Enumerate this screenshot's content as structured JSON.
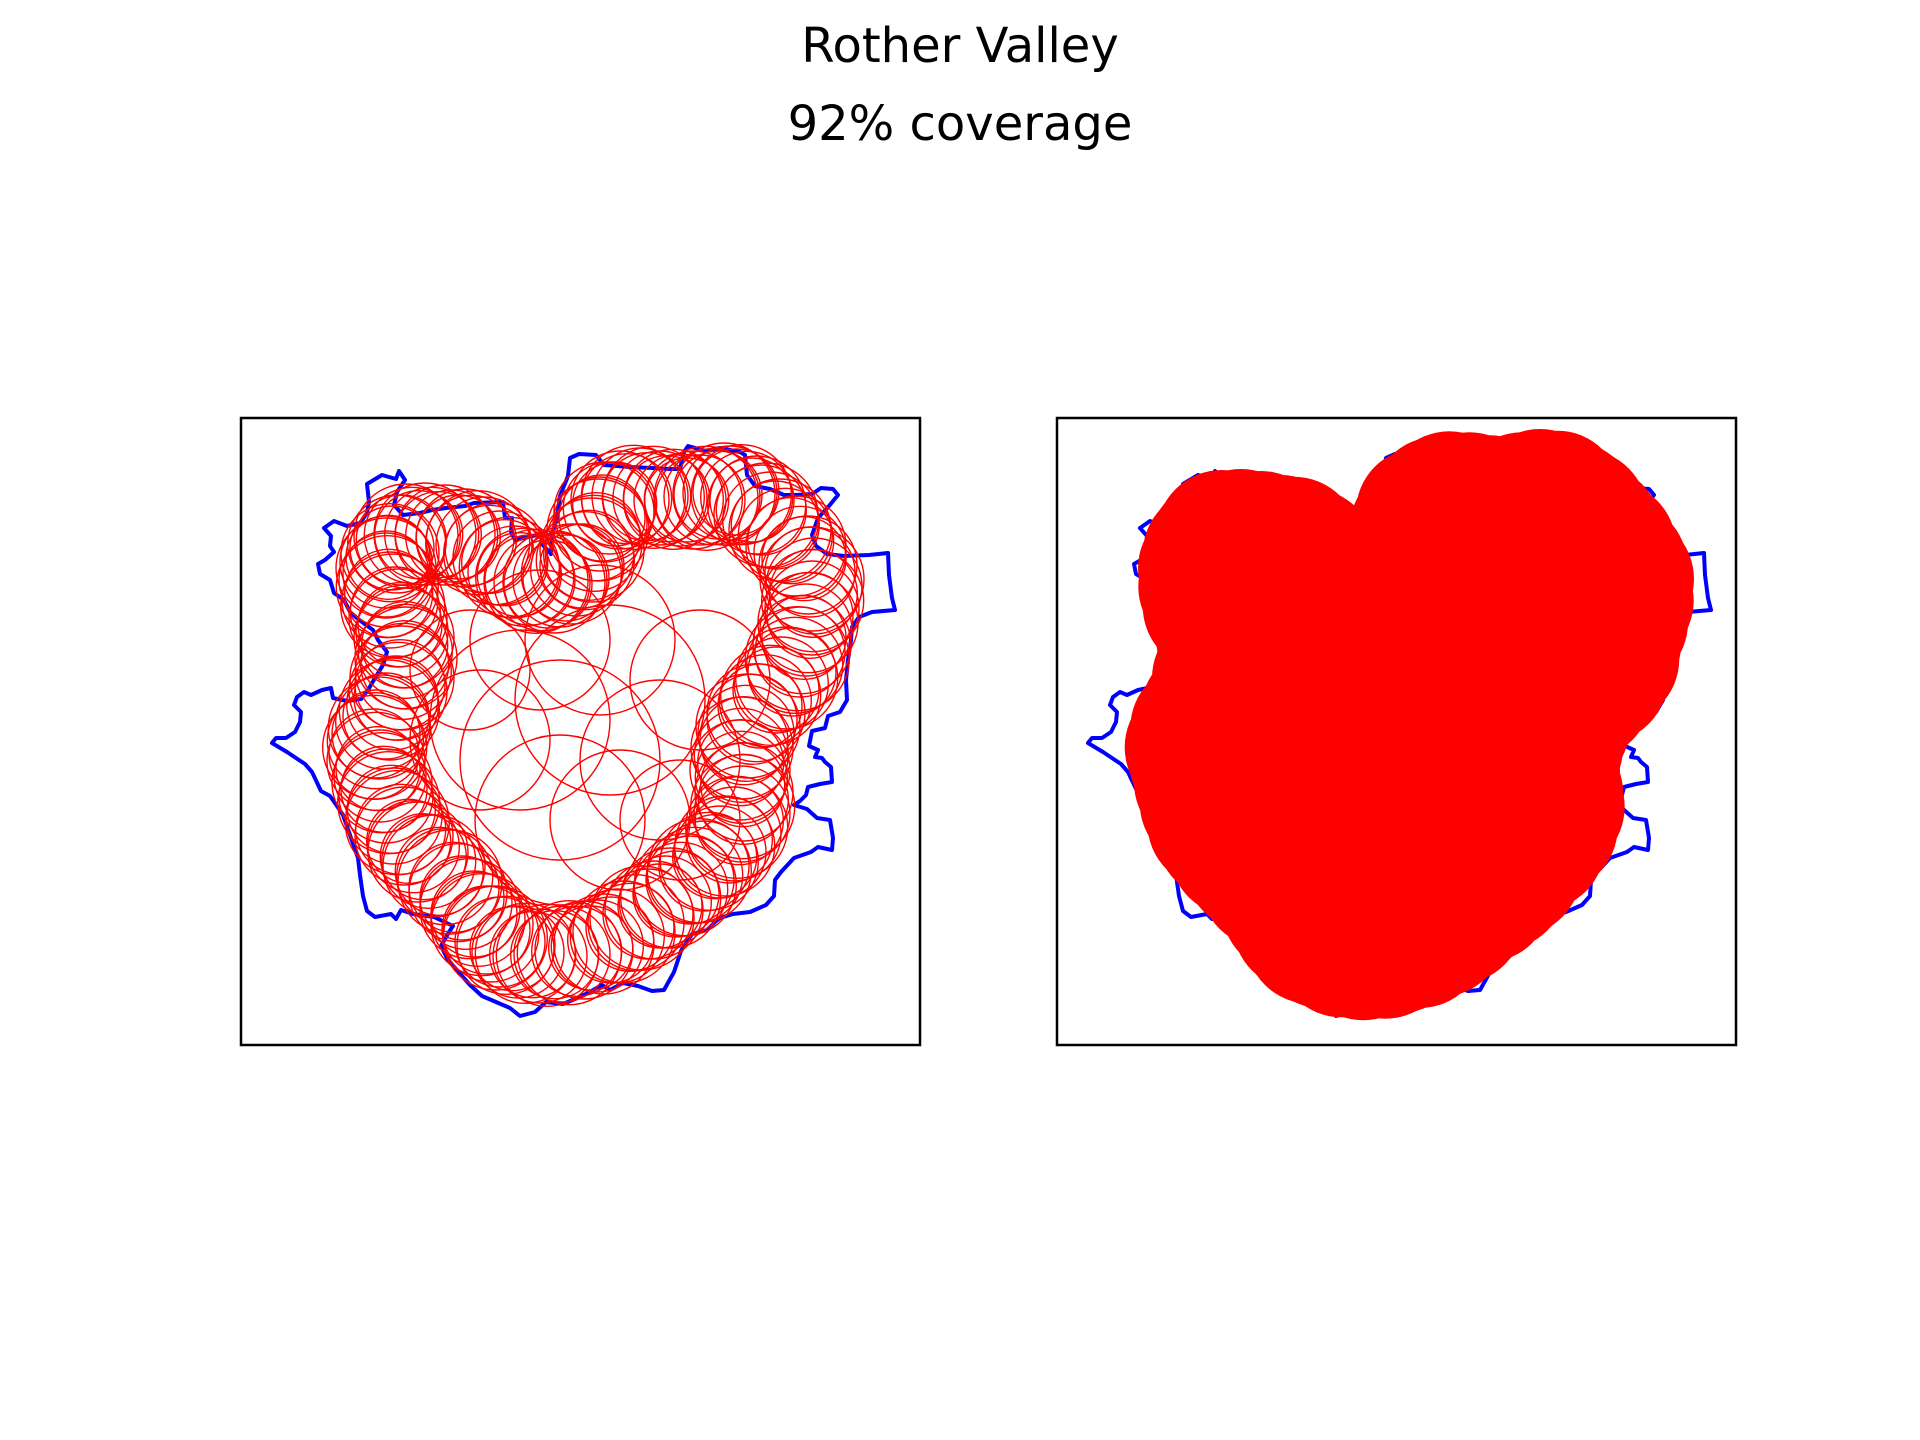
{
  "figure": {
    "title": "Rother Valley",
    "subtitle": "92% coverage",
    "colors": {
      "boundary": "#0000ff",
      "circles": "#ff0000",
      "frame": "#000000"
    },
    "panels": [
      {
        "name": "circle-outlines-panel",
        "style": "outline"
      },
      {
        "name": "filled-coverage-panel",
        "style": "filled"
      }
    ]
  }
}
